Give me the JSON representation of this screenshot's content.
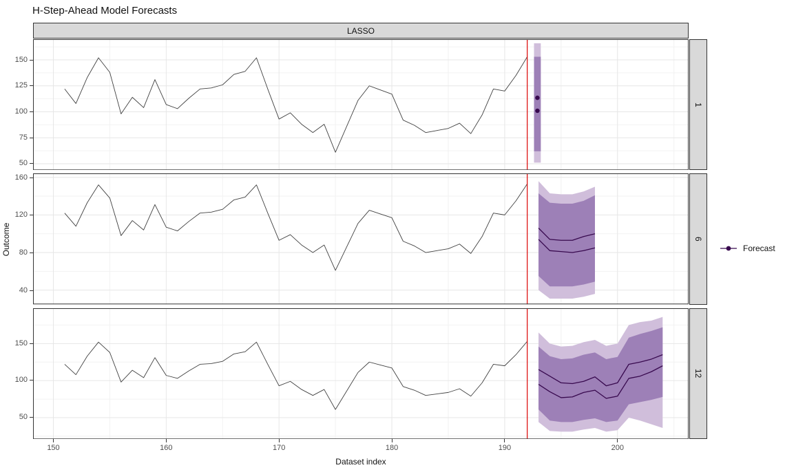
{
  "title": "H-Step-Ahead Model Forecasts",
  "chart_data": {
    "type": "line",
    "title": "H-Step-Ahead Model Forecasts",
    "xlabel": "Dataset index",
    "ylabel": "Outcome",
    "facet_top": "LASSO",
    "legend": {
      "label": "Forecast",
      "position": "right"
    },
    "grid": true,
    "colors": {
      "history_line": "#404040",
      "forecast": "#38094e",
      "ribbon_outer": "#d0bedb",
      "ribbon_inner": "#9d80b7",
      "cutoff_line": "#dc0000",
      "strip_fill": "#d9d9d9",
      "panel_border": "#333333",
      "grid_major": "#e6e6e6",
      "grid_minor": "#f2f2f2",
      "tick_label": "#4d4d4d"
    },
    "x_axis": {
      "ticks": [
        150,
        160,
        170,
        180,
        190,
        200
      ],
      "minor_ticks": [
        155,
        165,
        175,
        185,
        195,
        205
      ],
      "domain": [
        148.2,
        206.3
      ]
    },
    "cutoff_x": 192,
    "history": {
      "x_start": 151,
      "x_end": 192,
      "values": [
        122,
        108,
        133,
        152,
        138,
        98,
        114,
        104,
        131,
        107,
        103,
        113,
        122,
        123,
        126,
        136,
        139,
        152,
        122,
        93,
        99,
        88,
        80,
        88,
        61,
        86,
        111,
        125,
        121,
        117,
        92,
        87,
        80,
        82,
        84,
        89,
        79,
        97,
        122,
        120,
        135,
        153
      ]
    },
    "panels": [
      {
        "facet": "1",
        "y_ticks": [
          50,
          75,
          100,
          125,
          150
        ],
        "y_minor": [
          62.5,
          87.5,
          112.5,
          137.5,
          162.5
        ],
        "y_domain": [
          43.8,
          169.9
        ],
        "forecast": {
          "x": [
            192.9
          ],
          "points": [
            113.5,
            101
          ],
          "interval95": {
            "x": [
              192.6,
              193.2
            ],
            "hi": [
              166,
              166
            ],
            "lo": [
              51,
              51
            ]
          },
          "interval80": {
            "x": [
              192.6,
              193.2
            ],
            "hi": [
              153,
              153
            ],
            "lo": [
              62,
              62
            ]
          },
          "lines": []
        }
      },
      {
        "facet": "6",
        "y_ticks": [
          40,
          80,
          120,
          160
        ],
        "y_minor": [
          60,
          100,
          140
        ],
        "y_domain": [
          24.9,
          164.2
        ],
        "forecast": {
          "x": [
            193,
            194,
            195,
            196,
            197,
            198
          ],
          "points": [],
          "interval95": {
            "hi": [
              156,
              143,
              142,
              142,
              145,
              150
            ],
            "lo": [
              40,
              31,
              31,
              31,
              33,
              36
            ]
          },
          "interval80": {
            "hi": [
              143,
              133,
              132,
              132,
              135,
              141
            ],
            "lo": [
              55,
              44,
              44,
              44,
              46,
              49
            ]
          },
          "lines": [
            [
              106,
              94,
              93,
              93,
              97,
              100
            ],
            [
              94,
              82,
              81,
              80,
              82,
              85
            ]
          ]
        }
      },
      {
        "facet": "12",
        "y_ticks": [
          50,
          100,
          150
        ],
        "y_minor": [
          25,
          75,
          125,
          175
        ],
        "y_domain": [
          20.9,
          197.7
        ],
        "forecast": {
          "x": [
            193,
            194,
            195,
            196,
            197,
            198,
            199,
            200,
            201,
            202,
            203,
            204
          ],
          "points": [],
          "interval95": {
            "hi": [
              165,
              150,
              146,
              147,
              152,
              155,
              147,
              150,
              175,
              179,
              181,
              186
            ],
            "lo": [
              44,
              32,
              31,
              31,
              34,
              36,
              31,
              33,
              50,
              46,
              41,
              36
            ]
          },
          "interval80": {
            "hi": [
              146,
              133,
              129,
              130,
              135,
              138,
              129,
              132,
              158,
              163,
              167,
              172
            ],
            "lo": [
              61,
              46,
              44,
              44,
              47,
              49,
              44,
              46,
              68,
              71,
              74,
              78
            ]
          },
          "lines": [
            [
              115,
              106,
              97,
              96,
              99,
              105,
              93,
              97,
              122,
              125,
              129,
              135
            ],
            [
              95,
              85,
              77,
              78,
              84,
              87,
              76,
              79,
              103,
              106,
              112,
              120
            ]
          ]
        }
      }
    ]
  }
}
